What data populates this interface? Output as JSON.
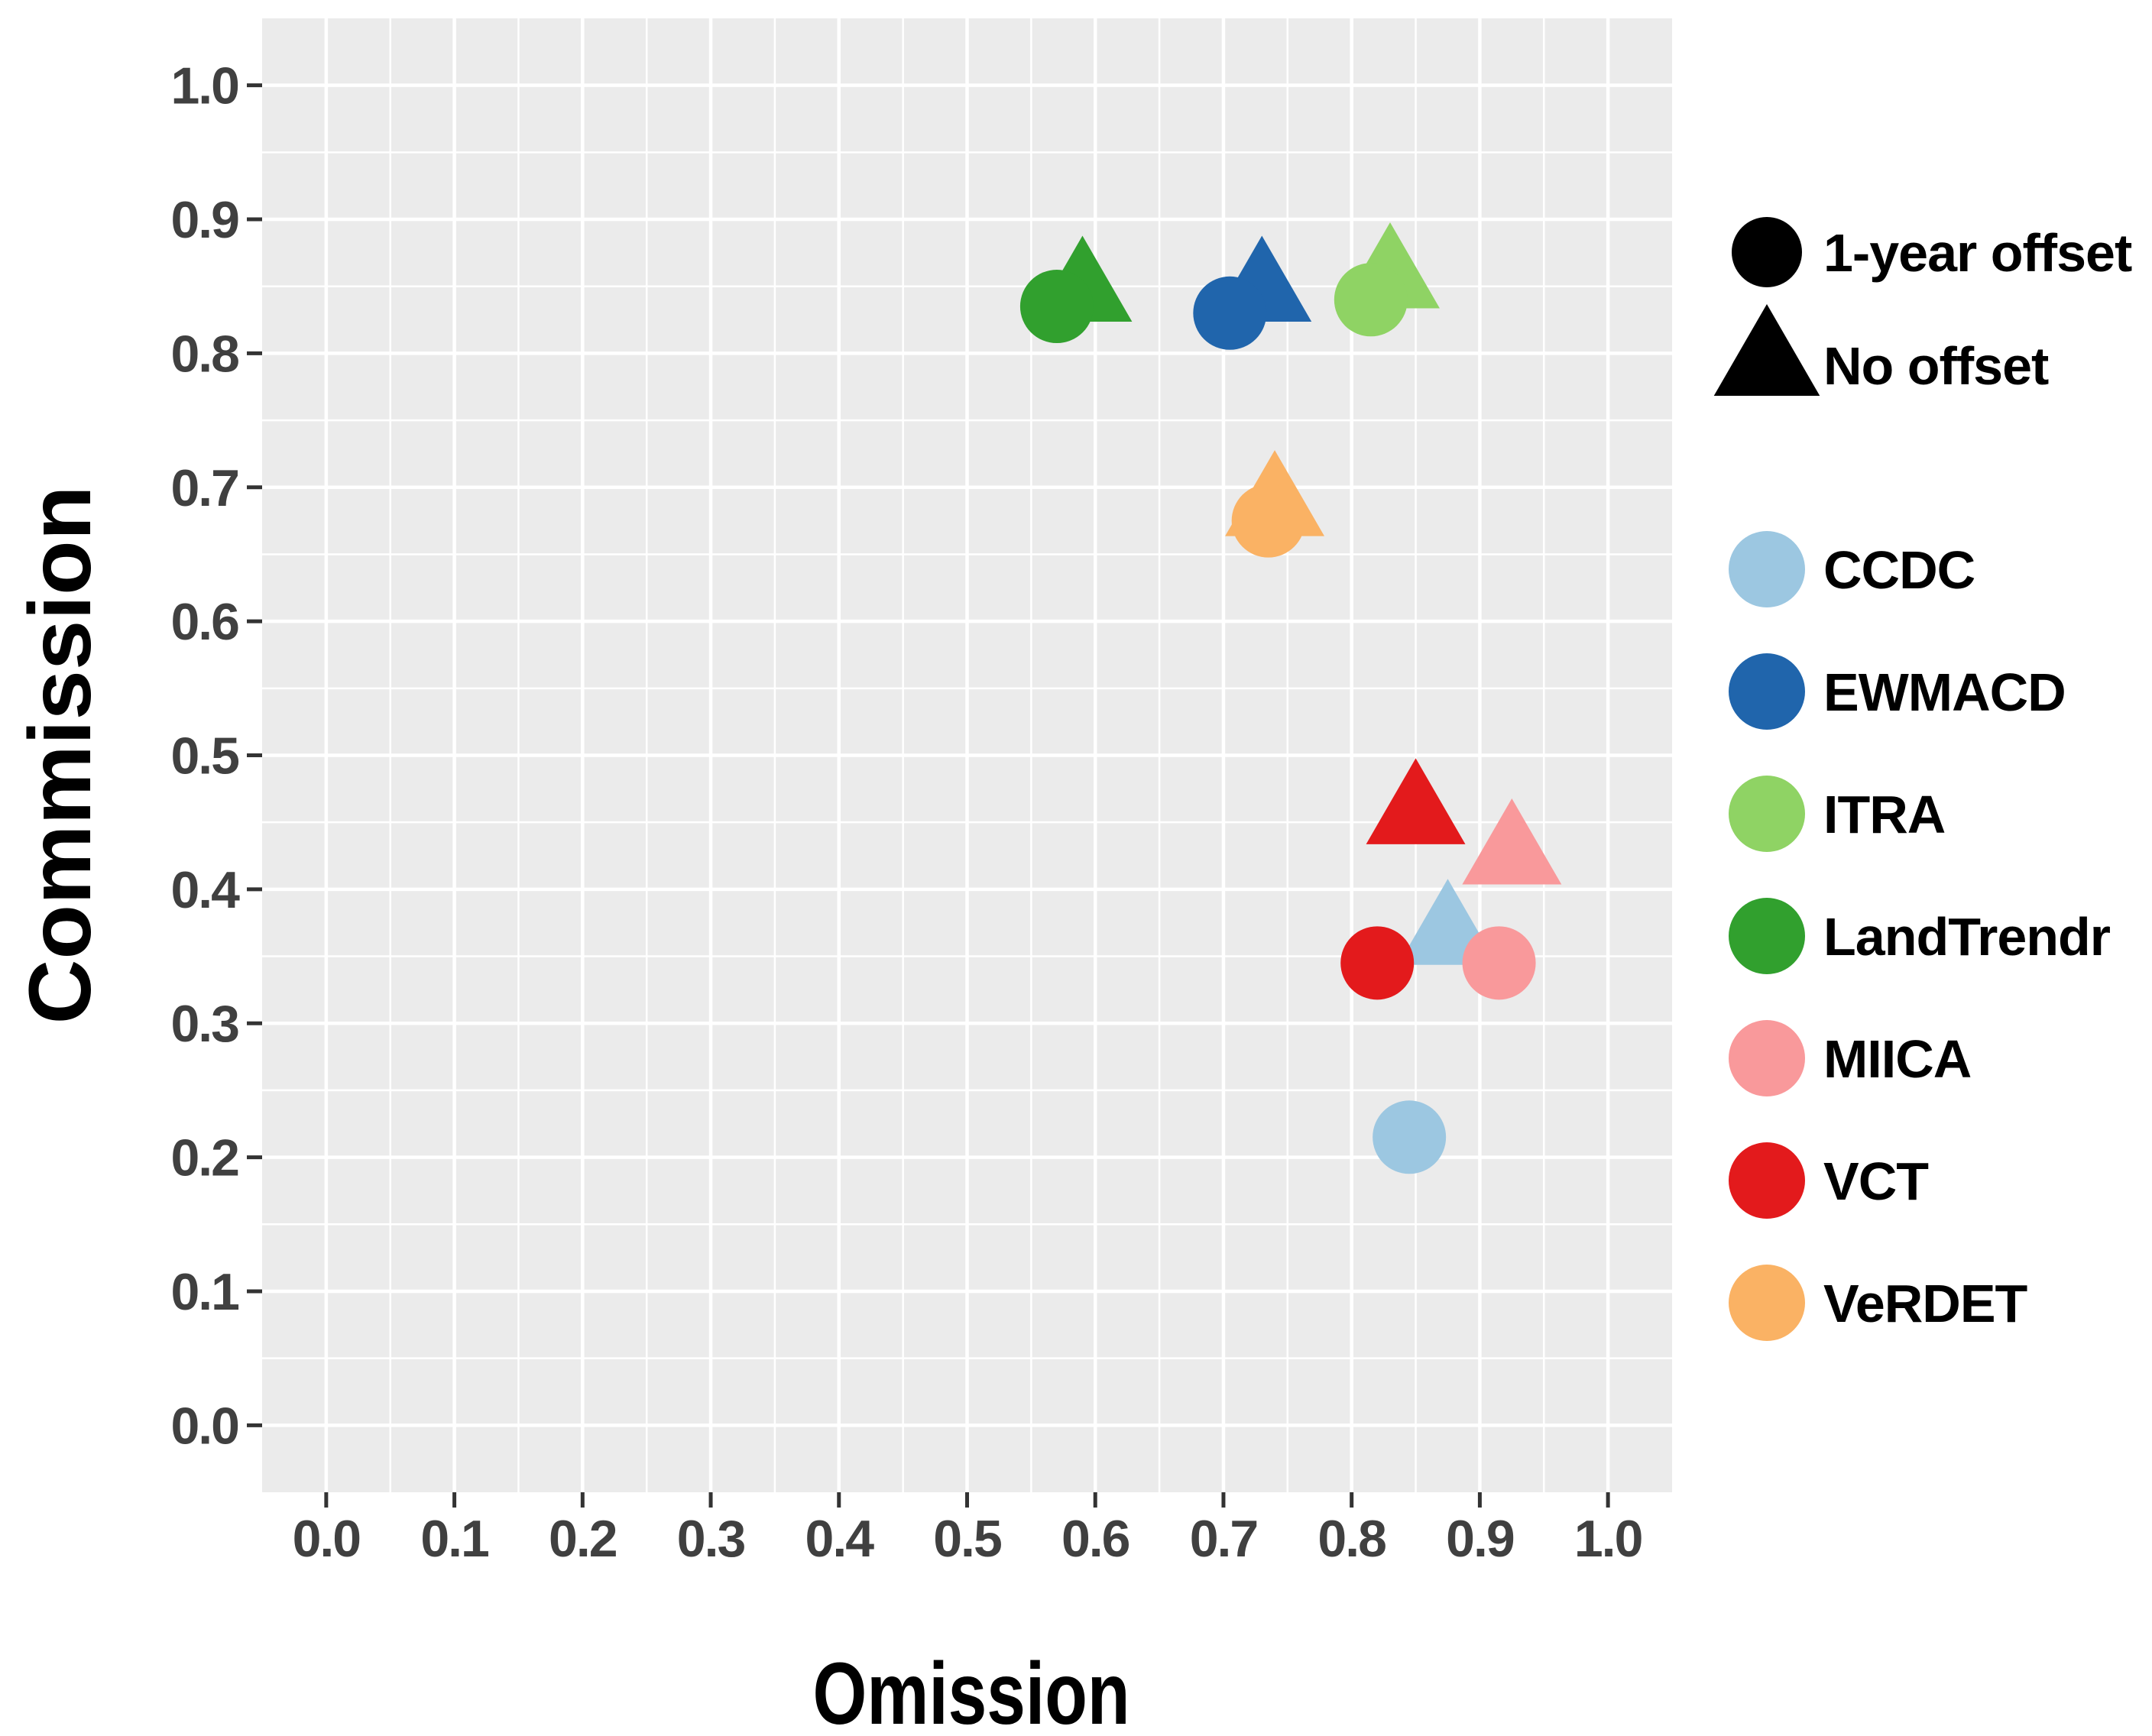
{
  "figure": {
    "background": "#FFFFFF",
    "panel_background": "#EBEBEB",
    "grid_color": "#FFFFFF",
    "tick_color": "#333333",
    "tick_label_color": "#404040",
    "axis_title_color": "#000000",
    "legend_shape_color": "#000000"
  },
  "chart_data": {
    "type": "scatter",
    "title": "",
    "xlabel": "Omission",
    "ylabel": "Commission",
    "xlim": [
      -0.05,
      1.05
    ],
    "ylim": [
      -0.05,
      1.05
    ],
    "x_ticks": [
      0.0,
      0.1,
      0.2,
      0.3,
      0.4,
      0.5,
      0.6,
      0.7,
      0.8,
      0.9,
      1.0
    ],
    "y_ticks": [
      0.0,
      0.1,
      0.2,
      0.3,
      0.4,
      0.5,
      0.6,
      0.7,
      0.8,
      0.9,
      1.0
    ],
    "tick_decimals": 1,
    "grid": {
      "visible": true,
      "major_step": 0.1,
      "minor_step": 0.05
    },
    "legend_position": "right",
    "shape_legend": [
      {
        "shape": "circle",
        "label": "1-year offset"
      },
      {
        "shape": "triangle",
        "label": "No offset"
      }
    ],
    "series": [
      {
        "name": "CCDC",
        "color": "#9CC7E1",
        "points": [
          {
            "offset": "1-year offset",
            "shape": "circle",
            "omission": 0.845,
            "commission": 0.215
          },
          {
            "offset": "No offset",
            "shape": "triangle",
            "omission": 0.875,
            "commission": 0.365
          }
        ]
      },
      {
        "name": "EWMACD",
        "color": "#2065AC",
        "points": [
          {
            "offset": "1-year offset",
            "shape": "circle",
            "omission": 0.705,
            "commission": 0.83
          },
          {
            "offset": "No offset",
            "shape": "triangle",
            "omission": 0.73,
            "commission": 0.845
          }
        ]
      },
      {
        "name": "ITRA",
        "color": "#8FD364",
        "points": [
          {
            "offset": "1-year offset",
            "shape": "circle",
            "omission": 0.815,
            "commission": 0.84
          },
          {
            "offset": "No offset",
            "shape": "triangle",
            "omission": 0.83,
            "commission": 0.855
          }
        ]
      },
      {
        "name": "LandTrendr",
        "color": "#31A02E",
        "points": [
          {
            "offset": "1-year offset",
            "shape": "circle",
            "omission": 0.57,
            "commission": 0.835
          },
          {
            "offset": "No offset",
            "shape": "triangle",
            "omission": 0.59,
            "commission": 0.845
          }
        ]
      },
      {
        "name": "MIICA",
        "color": "#F9999B",
        "points": [
          {
            "offset": "1-year offset",
            "shape": "circle",
            "omission": 0.915,
            "commission": 0.345
          },
          {
            "offset": "No offset",
            "shape": "triangle",
            "omission": 0.925,
            "commission": 0.425
          }
        ]
      },
      {
        "name": "VCT",
        "color": "#E31A1C",
        "points": [
          {
            "offset": "1-year offset",
            "shape": "circle",
            "omission": 0.82,
            "commission": 0.345
          },
          {
            "offset": "No offset",
            "shape": "triangle",
            "omission": 0.85,
            "commission": 0.455
          }
        ]
      },
      {
        "name": "VeRDET",
        "color": "#FAB264",
        "points": [
          {
            "offset": "1-year offset",
            "shape": "circle",
            "omission": 0.735,
            "commission": 0.675
          },
          {
            "offset": "No offset",
            "shape": "triangle",
            "omission": 0.74,
            "commission": 0.685
          }
        ]
      }
    ]
  }
}
